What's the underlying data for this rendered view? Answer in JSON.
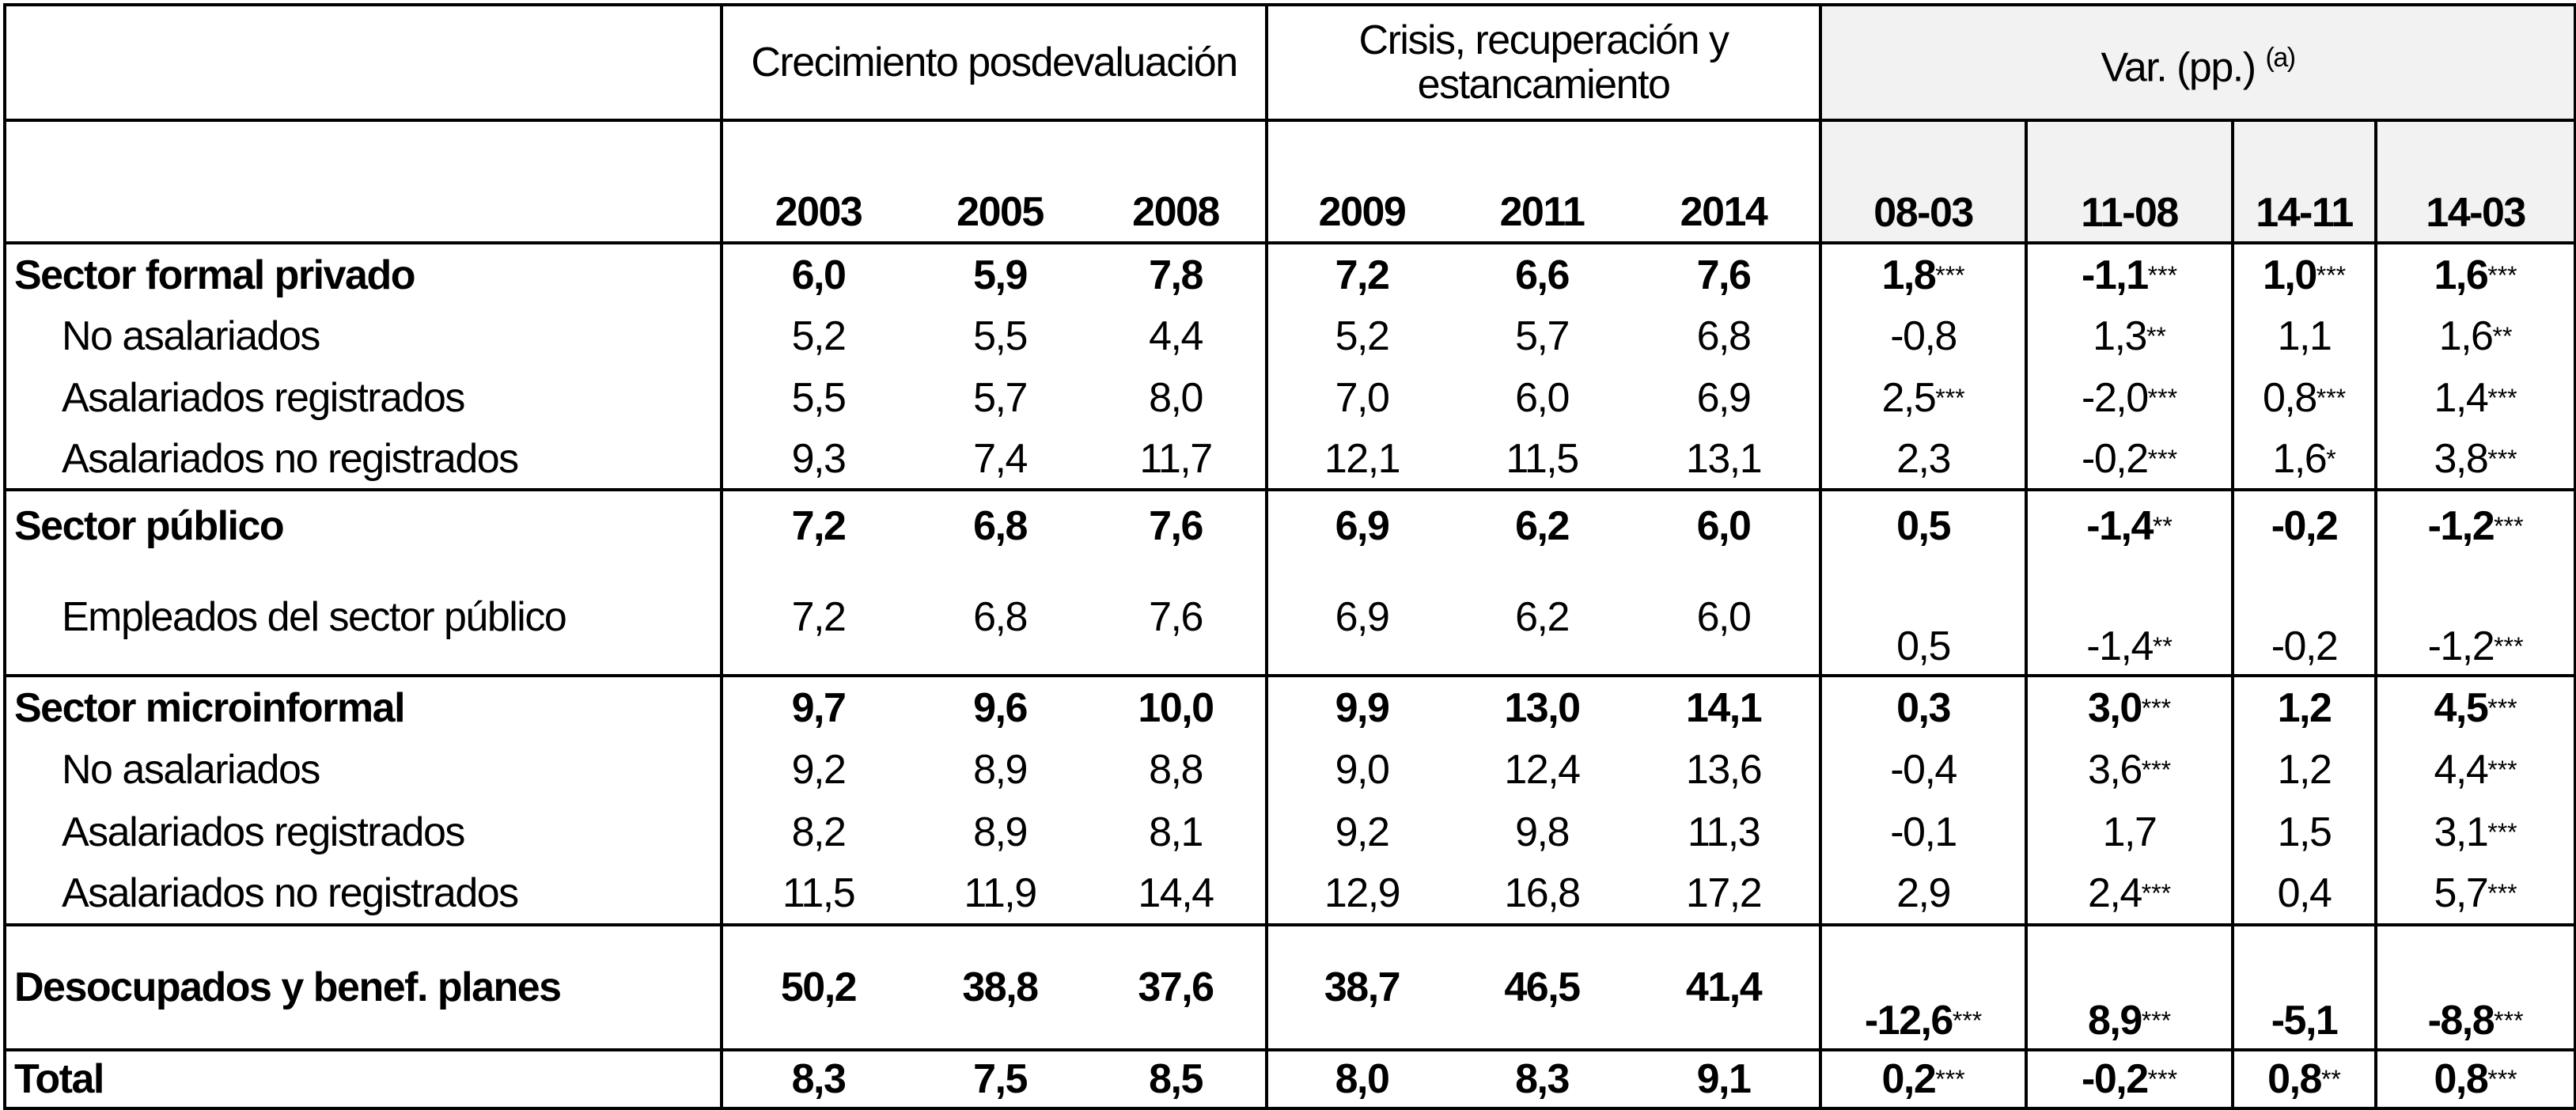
{
  "header": {
    "group1": "Crecimiento posdevaluación",
    "group2": "Crisis, recuperación y estancamiento",
    "group3": "Var. (pp.)",
    "group3_note": "(a)",
    "years": [
      "2003",
      "2005",
      "2008",
      "2009",
      "2011",
      "2014"
    ],
    "vars": [
      "08-03",
      "11-08",
      "14-11",
      "14-03"
    ]
  },
  "colors": {
    "var_header_bg": "#f2f2f2",
    "border": "#000000"
  },
  "rows": [
    {
      "label": "Sector formal privado",
      "bold": true,
      "values": [
        "6,0",
        "5,9",
        "7,8",
        "7,2",
        "6,6",
        "7,6"
      ],
      "vars": [
        {
          "v": "1,8",
          "s": "***"
        },
        {
          "v": "-1,1",
          "s": "***"
        },
        {
          "v": "1,0",
          "s": "***"
        },
        {
          "v": "1,6",
          "s": "***"
        }
      ]
    },
    {
      "label": "No asalariados",
      "values": [
        "5,2",
        "5,5",
        "4,4",
        "5,2",
        "5,7",
        "6,8"
      ],
      "vars": [
        {
          "v": "-0,8",
          "s": ""
        },
        {
          "v": "1,3",
          "s": "**"
        },
        {
          "v": "1,1",
          "s": ""
        },
        {
          "v": "1,6",
          "s": "**"
        }
      ]
    },
    {
      "label": "Asalariados registrados",
      "values": [
        "5,5",
        "5,7",
        "8,0",
        "7,0",
        "6,0",
        "6,9"
      ],
      "vars": [
        {
          "v": "2,5",
          "s": "***"
        },
        {
          "v": "-2,0",
          "s": "***"
        },
        {
          "v": "0,8",
          "s": "***"
        },
        {
          "v": "1,4",
          "s": "***"
        }
      ]
    },
    {
      "label": "Asalariados no registrados",
      "values": [
        "9,3",
        "7,4",
        "11,7",
        "12,1",
        "11,5",
        "13,1"
      ],
      "vars": [
        {
          "v": "2,3",
          "s": ""
        },
        {
          "v": "-0,2",
          "s": "***"
        },
        {
          "v": "1,6",
          "s": "*"
        },
        {
          "v": "3,8",
          "s": "***"
        }
      ]
    },
    {
      "label": "Sector público",
      "bold": true,
      "section": true,
      "values": [
        "7,2",
        "6,8",
        "7,6",
        "6,9",
        "6,2",
        "6,0"
      ],
      "vars": [
        {
          "v": "0,5",
          "s": ""
        },
        {
          "v": "-1,4",
          "s": "**"
        },
        {
          "v": "-0,2",
          "s": ""
        },
        {
          "v": "-1,2",
          "s": "***"
        }
      ]
    },
    {
      "label": "Empleados del sector público",
      "tall": true,
      "values": [
        "7,2",
        "6,8",
        "7,6",
        "6,9",
        "6,2",
        "6,0"
      ],
      "vars": [
        {
          "v": "0,5",
          "s": ""
        },
        {
          "v": "-1,4",
          "s": "**"
        },
        {
          "v": "-0,2",
          "s": ""
        },
        {
          "v": "-1,2",
          "s": "***"
        }
      ]
    },
    {
      "label": "Sector microinformal",
      "bold": true,
      "section": true,
      "values": [
        "9,7",
        "9,6",
        "10,0",
        "9,9",
        "13,0",
        "14,1"
      ],
      "vars": [
        {
          "v": "0,3",
          "s": ""
        },
        {
          "v": "3,0",
          "s": "***"
        },
        {
          "v": "1,2",
          "s": ""
        },
        {
          "v": "4,5",
          "s": "***"
        }
      ]
    },
    {
      "label": "No asalariados",
      "values": [
        "9,2",
        "8,9",
        "8,8",
        "9,0",
        "12,4",
        "13,6"
      ],
      "vars": [
        {
          "v": "-0,4",
          "s": ""
        },
        {
          "v": "3,6",
          "s": "***"
        },
        {
          "v": "1,2",
          "s": ""
        },
        {
          "v": "4,4",
          "s": "***"
        }
      ]
    },
    {
      "label": "Asalariados registrados",
      "values": [
        "8,2",
        "8,9",
        "8,1",
        "9,2",
        "9,8",
        "11,3"
      ],
      "vars": [
        {
          "v": "-0,1",
          "s": ""
        },
        {
          "v": "1,7",
          "s": ""
        },
        {
          "v": "1,5",
          "s": ""
        },
        {
          "v": "3,1",
          "s": "***"
        }
      ]
    },
    {
      "label": "Asalariados no registrados",
      "values": [
        "11,5",
        "11,9",
        "14,4",
        "12,9",
        "16,8",
        "17,2"
      ],
      "vars": [
        {
          "v": "2,9",
          "s": ""
        },
        {
          "v": "2,4",
          "s": "***"
        },
        {
          "v": "0,4",
          "s": ""
        },
        {
          "v": "5,7",
          "s": "***"
        }
      ]
    },
    {
      "label": "Desocupados y benef. planes",
      "bold": true,
      "section": true,
      "tall": true,
      "values": [
        "50,2",
        "38,8",
        "37,6",
        "38,7",
        "46,5",
        "41,4"
      ],
      "vars": [
        {
          "v": "-12,6",
          "s": "***"
        },
        {
          "v": "8,9",
          "s": "***"
        },
        {
          "v": "-5,1",
          "s": ""
        },
        {
          "v": "-8,8",
          "s": "***"
        }
      ]
    },
    {
      "label": "Total",
      "bold": true,
      "section": true,
      "values": [
        "8,3",
        "7,5",
        "8,5",
        "8,0",
        "8,3",
        "9,1"
      ],
      "vars": [
        {
          "v": "0,2",
          "s": "***"
        },
        {
          "v": "-0,2",
          "s": "***"
        },
        {
          "v": "0,8",
          "s": "**"
        },
        {
          "v": "0,8",
          "s": "***"
        }
      ]
    }
  ]
}
